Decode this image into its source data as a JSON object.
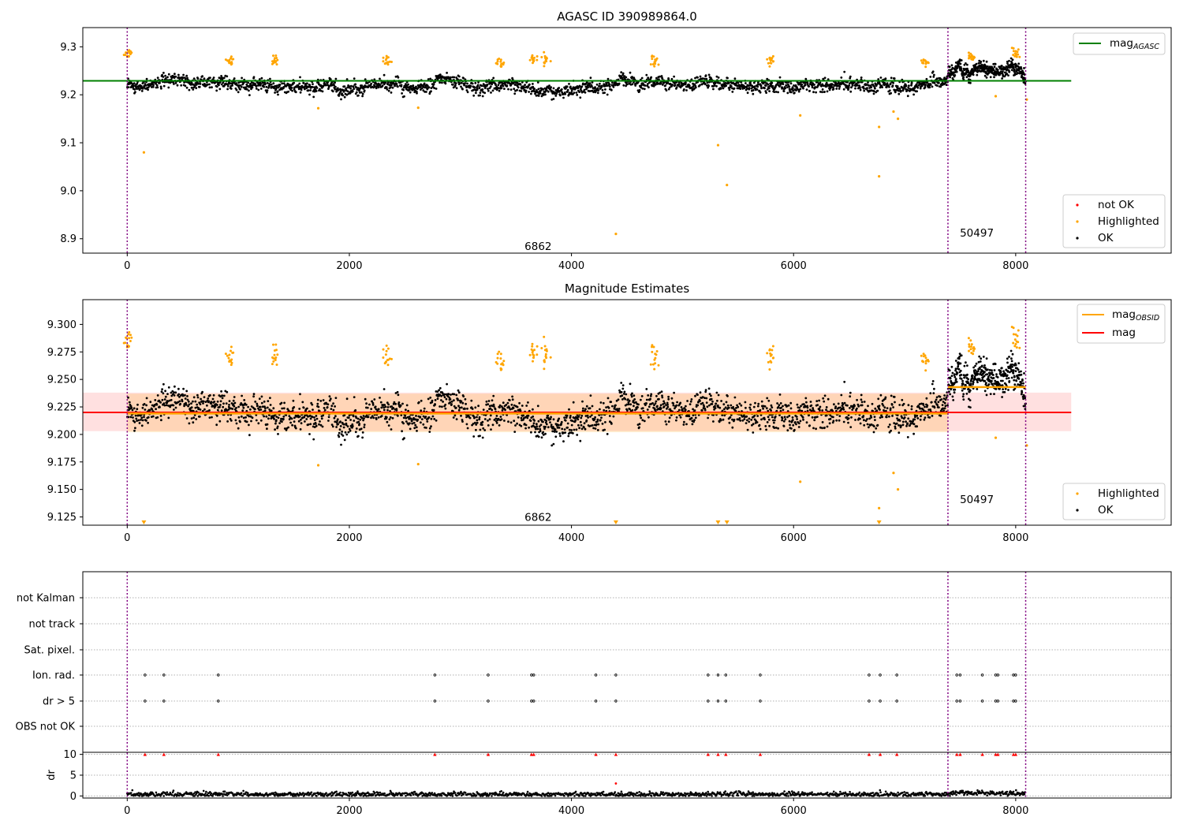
{
  "chart_data": [
    {
      "type": "scatter",
      "title": "AGASC ID 390989864.0",
      "xlim": [
        -400,
        9400
      ],
      "ylim": [
        8.87,
        9.34
      ],
      "xticks": [
        "0",
        "2000",
        "4000",
        "6000",
        "8000"
      ],
      "yticks": [
        "8.9",
        "9.0",
        "9.1",
        "9.2",
        "9.3"
      ],
      "legend_lines": [
        {
          "name": "mag",
          "sub": "AGASC",
          "color": "#008000"
        }
      ],
      "legend_points": [
        {
          "name": "not OK",
          "color": "#ff0000"
        },
        {
          "name": "Highlighted",
          "color": "#ffa500"
        },
        {
          "name": "OK",
          "color": "#000000"
        }
      ],
      "mag_agasc": 9.229,
      "obsid_boundaries": [
        0,
        7390,
        8090
      ],
      "obsid_labels": [
        {
          "text": "6862",
          "x": 3700,
          "y": 8.885
        },
        {
          "text": "50497",
          "x": 7650,
          "y": 8.913
        }
      ],
      "series": [
        {
          "name": "OK",
          "color": "#000000",
          "segments": [
            {
              "x0": 0,
              "x1": 7390,
              "mean": 9.22,
              "sd": 0.012
            },
            {
              "x0": 7390,
              "x1": 8090,
              "mean": 9.245,
              "sd": 0.012
            }
          ]
        },
        {
          "name": "Highlighted",
          "color": "#ffa500",
          "clusters": [
            {
              "x": 10,
              "y": 9.285
            },
            {
              "x": 920,
              "y": 9.27
            },
            {
              "x": 1330,
              "y": 9.27
            },
            {
              "x": 2340,
              "y": 9.27
            },
            {
              "x": 3360,
              "y": 9.265
            },
            {
              "x": 3650,
              "y": 9.275
            },
            {
              "x": 3760,
              "y": 9.275
            },
            {
              "x": 4750,
              "y": 9.27
            },
            {
              "x": 5790,
              "y": 9.27
            },
            {
              "x": 7190,
              "y": 9.27
            },
            {
              "x": 7600,
              "y": 9.28
            },
            {
              "x": 8000,
              "y": 9.29
            }
          ],
          "outliers": [
            {
              "x": 150,
              "y": 9.08
            },
            {
              "x": 1720,
              "y": 9.172
            },
            {
              "x": 2620,
              "y": 9.173
            },
            {
              "x": 4400,
              "y": 8.91
            },
            {
              "x": 5320,
              "y": 9.095
            },
            {
              "x": 5400,
              "y": 9.012
            },
            {
              "x": 6060,
              "y": 9.157
            },
            {
              "x": 6770,
              "y": 9.133
            },
            {
              "x": 6770,
              "y": 9.03
            },
            {
              "x": 6900,
              "y": 9.165
            },
            {
              "x": 6940,
              "y": 9.15
            },
            {
              "x": 7820,
              "y": 9.197
            },
            {
              "x": 8100,
              "y": 9.19
            }
          ]
        }
      ]
    },
    {
      "type": "scatter",
      "title": "Magnitude Estimates",
      "xlim": [
        -400,
        9400
      ],
      "ylim": [
        9.1175,
        9.3225
      ],
      "xticks": [
        "0",
        "2000",
        "4000",
        "6000",
        "8000"
      ],
      "yticks": [
        "9.125",
        "9.150",
        "9.175",
        "9.200",
        "9.225",
        "9.250",
        "9.275",
        "9.300"
      ],
      "legend_lines": [
        {
          "name": "mag",
          "sub": "OBSID",
          "color": "#ffa500"
        },
        {
          "name": "mag",
          "sub": "",
          "color": "#ff0000"
        }
      ],
      "legend_points": [
        {
          "name": "Highlighted",
          "color": "#ffa500"
        },
        {
          "name": "OK",
          "color": "#000000"
        }
      ],
      "mag": 9.22,
      "mag_band": [
        9.203,
        9.238
      ],
      "mag_obsid": [
        {
          "x0": 0,
          "x1": 7390,
          "y": 9.219,
          "band": [
            9.202,
            9.237
          ]
        },
        {
          "x0": 7390,
          "x1": 8090,
          "y": 9.243
        }
      ],
      "obsid_boundaries": [
        0,
        7390,
        8090
      ],
      "obsid_labels": [
        {
          "text": "6862",
          "x": 3700,
          "y": 9.125
        },
        {
          "text": "50497",
          "x": 7650,
          "y": 9.141
        }
      ],
      "clipped_markers_x": [
        150,
        4400,
        5320,
        5400,
        6770
      ]
    },
    {
      "type": "scatter",
      "xlim": [
        -400,
        9400
      ],
      "xticks": [
        "0",
        "2000",
        "4000",
        "6000",
        "8000"
      ],
      "flag_rows": [
        "not Kalman",
        "not track",
        "Sat. pixel.",
        "Ion. rad.",
        "dr > 5",
        "OBS not OK"
      ],
      "flags": [
        {
          "row": "Ion. rad.",
          "x": [
            160,
            330,
            820,
            2770,
            3250,
            3640,
            3660,
            4220,
            4400,
            5230,
            5320,
            5390,
            5700,
            6680,
            6780,
            6930,
            7470,
            7500,
            7700,
            7820,
            7840,
            7980,
            8000
          ]
        },
        {
          "row": "dr > 5",
          "x": [
            160,
            330,
            820,
            2770,
            3250,
            3640,
            3660,
            4220,
            4400,
            5230,
            5320,
            5390,
            5700,
            6680,
            6780,
            6930,
            7470,
            7500,
            7700,
            7820,
            7840,
            7980,
            8000
          ]
        }
      ],
      "dr_ylabel": "dr",
      "dr_yticks": [
        "0",
        "5",
        "10"
      ],
      "dr_ylim": [
        -0.5,
        10.5
      ],
      "dr_clipped_x": [
        160,
        330,
        820,
        2770,
        3250,
        3640,
        3660,
        4220,
        4400,
        5230,
        5320,
        5390,
        5700,
        6680,
        6780,
        6930,
        7470,
        7500,
        7700,
        7820,
        7840,
        7980,
        8000
      ],
      "dr_outliers": [
        {
          "x": 4400,
          "y": 3.0
        }
      ],
      "dr_level": {
        "x0": 0,
        "x1": 8090,
        "y": 0.4
      }
    }
  ]
}
